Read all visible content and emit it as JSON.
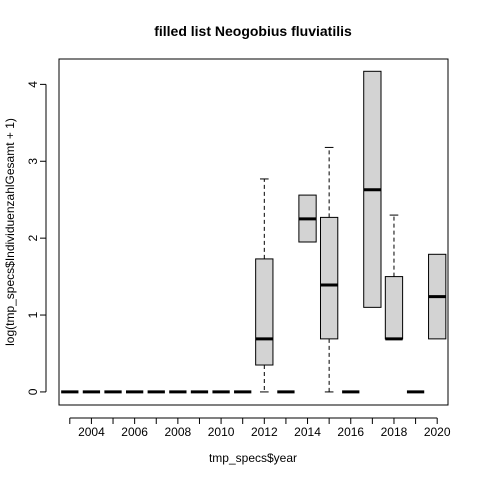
{
  "chart_data": {
    "type": "boxplot",
    "title": "filled list Neogobius fluviatilis",
    "xlabel": "tmp_specs$year",
    "ylabel": "log(tmp_specs$IndividuenzahlGesamt + 1)",
    "ylim": [
      0,
      4.3
    ],
    "y_ticks": [
      0,
      1,
      2,
      3,
      4
    ],
    "x_tick_labels": [
      "2004",
      "2006",
      "2008",
      "2010",
      "2012",
      "2014",
      "2016",
      "2018",
      "2020"
    ],
    "colors": {
      "box_fill": "#d3d3d3",
      "stroke": "#000000"
    },
    "boxes": [
      {
        "year": 2003,
        "min": 0,
        "q1": 0,
        "median": 0,
        "q3": 0,
        "max": 0
      },
      {
        "year": 2004,
        "min": 0,
        "q1": 0,
        "median": 0,
        "q3": 0,
        "max": 0
      },
      {
        "year": 2005,
        "min": 0,
        "q1": 0,
        "median": 0,
        "q3": 0,
        "max": 0
      },
      {
        "year": 2006,
        "min": 0,
        "q1": 0,
        "median": 0,
        "q3": 0,
        "max": 0
      },
      {
        "year": 2007,
        "min": 0,
        "q1": 0,
        "median": 0,
        "q3": 0,
        "max": 0
      },
      {
        "year": 2008,
        "min": 0,
        "q1": 0,
        "median": 0,
        "q3": 0,
        "max": 0
      },
      {
        "year": 2009,
        "min": 0,
        "q1": 0,
        "median": 0,
        "q3": 0,
        "max": 0
      },
      {
        "year": 2010,
        "min": 0,
        "q1": 0,
        "median": 0,
        "q3": 0,
        "max": 0
      },
      {
        "year": 2011,
        "min": 0,
        "q1": 0,
        "median": 0,
        "q3": 0,
        "max": 0
      },
      {
        "year": 2012,
        "min": 0,
        "q1": 0.35,
        "median": 0.69,
        "q3": 1.73,
        "max": 2.77
      },
      {
        "year": 2013,
        "min": 0,
        "q1": 0,
        "median": 0,
        "q3": 0,
        "max": 0
      },
      {
        "year": 2014,
        "min": 1.95,
        "q1": 1.95,
        "median": 2.25,
        "q3": 2.56,
        "max": 2.56
      },
      {
        "year": 2015,
        "min": 0,
        "q1": 0.69,
        "median": 1.39,
        "q3": 2.27,
        "max": 3.18
      },
      {
        "year": 2016,
        "min": 0,
        "q1": 0,
        "median": 0,
        "q3": 0,
        "max": 0
      },
      {
        "year": 2017,
        "min": 1.1,
        "q1": 1.1,
        "median": 2.63,
        "q3": 4.17,
        "max": 4.17
      },
      {
        "year": 2018,
        "min": 0.69,
        "q1": 0.69,
        "median": 0.69,
        "q3": 1.5,
        "max": 2.3
      },
      {
        "year": 2019,
        "min": 0,
        "q1": 0,
        "median": 0,
        "q3": 0,
        "max": 0
      },
      {
        "year": 2020,
        "min": 0.69,
        "q1": 0.69,
        "median": 1.24,
        "q3": 1.79,
        "max": 1.79
      }
    ]
  }
}
